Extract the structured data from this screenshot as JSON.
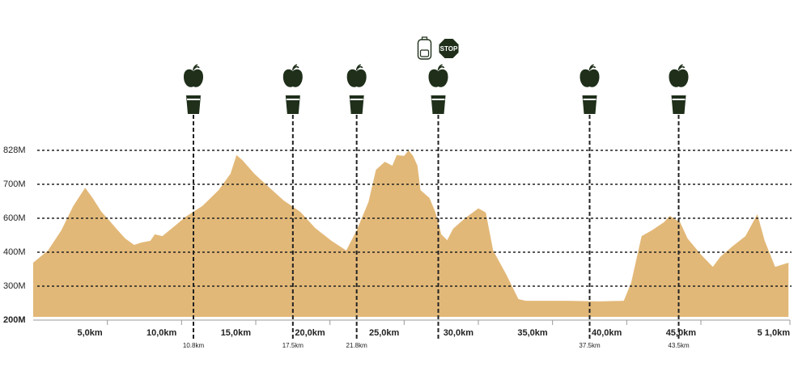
{
  "chart_data": {
    "type": "area",
    "x": [
      0,
      1.0,
      1.9,
      2.7,
      3.5,
      4.0,
      4.6,
      5.1,
      5.7,
      6.2,
      6.8,
      7.3,
      7.9,
      8.2,
      8.7,
      9.5,
      10.3,
      11.4,
      12.5,
      13.3,
      13.7,
      14.1,
      14.9,
      15.8,
      16.9,
      18.0,
      19.0,
      20.1,
      21.1,
      21.8,
      22.6,
      23.1,
      23.7,
      24.2,
      24.5,
      25.0,
      25.3,
      25.6,
      25.9,
      26.1,
      26.7,
      27.1,
      27.5,
      27.9,
      28.3,
      29.1,
      30.0,
      30.5,
      31.0,
      31.9,
      32.7,
      33.2,
      36.0,
      38.1,
      39.8,
      40.3,
      41.0,
      41.7,
      42.5,
      42.9,
      43.6,
      44.1,
      45.0,
      45.8,
      46.3,
      47.1,
      48.0,
      48.8,
      49.3,
      50.0,
      50.9
    ],
    "values": [
      369,
      410,
      529,
      636,
      690,
      660,
      619,
      590,
      529,
      481,
      443,
      457,
      467,
      505,
      495,
      552,
      605,
      636,
      683,
      740,
      810,
      791,
      740,
      695,
      652,
      619,
      543,
      467,
      410,
      529,
      648,
      755,
      785,
      770,
      810,
      807,
      828,
      807,
      770,
      683,
      660,
      619,
      505,
      471,
      538,
      600,
      629,
      617,
      410,
      333,
      262,
      257,
      257,
      255,
      257,
      310,
      495,
      529,
      576,
      607,
      576,
      481,
      393,
      357,
      386,
      433,
      495,
      612,
      467,
      357,
      369
    ],
    "color": "#e2b878",
    "xlim": [
      0,
      51
    ],
    "xticks": [
      {
        "value": 5,
        "label": "5,0km"
      },
      {
        "value": 10,
        "label": "10,0km"
      },
      {
        "value": 15,
        "label": "15,0km"
      },
      {
        "value": 20,
        "label": "20,0km"
      },
      {
        "value": 25,
        "label": "25,0km"
      },
      {
        "value": 30,
        "label": "30,0km"
      },
      {
        "value": 35,
        "label": "35,0km"
      },
      {
        "value": 40,
        "label": "40,0km"
      },
      {
        "value": 45,
        "label": "45,0km"
      },
      {
        "value": 51,
        "label": "5 1,0km"
      }
    ],
    "ylim": [
      200,
      828
    ],
    "yticks": [
      {
        "value": 200,
        "label": "200M"
      },
      {
        "value": 300,
        "label": "300M"
      },
      {
        "value": 400,
        "label": "400M"
      },
      {
        "value": 600,
        "label": "600M"
      },
      {
        "value": 700,
        "label": "700M"
      },
      {
        "value": 828,
        "label": "828M"
      }
    ],
    "grid": true,
    "stations": [
      {
        "x": 10.8,
        "label": "10.8km"
      },
      {
        "x": 17.5,
        "label": "17.5km"
      },
      {
        "x": 21.8,
        "label": "21.8km"
      },
      {
        "x": 27.3,
        "label": null,
        "sign": "STOP"
      },
      {
        "x": 37.5,
        "label": "37.5km"
      },
      {
        "x": 43.5,
        "label": "43.5km"
      }
    ]
  }
}
